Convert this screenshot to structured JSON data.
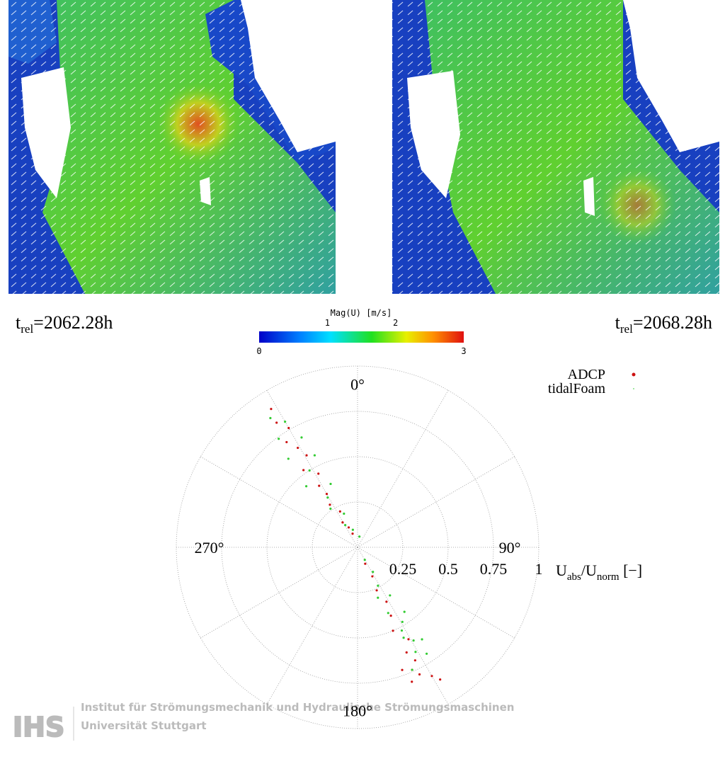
{
  "panels": [
    {
      "t": "t",
      "sub": "rel",
      "value": "=2062.28h"
    },
    {
      "t": "t",
      "sub": "rel",
      "value": "=2068.28h"
    }
  ],
  "colorbar": {
    "title": "Mag(U) [m/s]",
    "lim": [
      0,
      3
    ],
    "ticks": [
      0,
      1,
      2,
      3
    ]
  },
  "logo": {
    "mark": "IHS",
    "line1": "Institut für Strömungsmechanik und Hydraulische Strömungsmaschinen",
    "line2": "Universität Stuttgart"
  },
  "chart_data": {
    "type": "polar-scatter",
    "r_label": {
      "main": "U",
      "sub1": "abs",
      "mid": "/U",
      "sub2": "norm",
      "tail": " [−]"
    },
    "rlim": [
      0,
      1
    ],
    "rticks": [
      0.25,
      0.5,
      0.75,
      1
    ],
    "thetaticks": [
      {
        "value": 0,
        "label": "0°"
      },
      {
        "value": 90,
        "label": "90°"
      },
      {
        "value": 180,
        "label": "180°"
      },
      {
        "value": 270,
        "label": "270°"
      }
    ],
    "grid": true,
    "legend": "upper right",
    "series": [
      {
        "name": "ADCP",
        "color": "#cc1111",
        "theta": [
          328,
          327,
          330,
          326,
          329,
          331,
          325,
          332,
          328,
          330,
          327,
          334,
          329,
          336,
          340,
          155,
          153,
          156,
          152,
          154,
          157,
          151,
          155,
          153,
          156,
          154,
          150,
          158,
          160,
          148
        ],
        "r": [
          0.9,
          0.82,
          0.76,
          0.7,
          0.64,
          0.58,
          0.52,
          0.46,
          0.4,
          0.34,
          0.28,
          0.22,
          0.16,
          0.12,
          0.08,
          0.1,
          0.18,
          0.26,
          0.34,
          0.42,
          0.5,
          0.58,
          0.64,
          0.7,
          0.74,
          0.78,
          0.82,
          0.8,
          0.72,
          0.86
        ]
      },
      {
        "name": "tidalFoam",
        "color": "#33cc33",
        "theta": [
          326,
          330,
          324,
          333,
          322,
          335,
          328,
          320,
          337,
          329,
          325,
          338,
          331,
          345,
          10,
          150,
          148,
          152,
          146,
          155,
          149,
          153,
          145,
          151,
          147,
          156,
          149,
          152,
          144,
          158
        ],
        "r": [
          0.86,
          0.8,
          0.74,
          0.68,
          0.62,
          0.56,
          0.5,
          0.44,
          0.38,
          0.32,
          0.26,
          0.2,
          0.14,
          0.1,
          0.06,
          0.08,
          0.16,
          0.24,
          0.32,
          0.4,
          0.48,
          0.56,
          0.62,
          0.66,
          0.7,
          0.74,
          0.6,
          0.52,
          0.44,
          0.3
        ]
      }
    ]
  }
}
